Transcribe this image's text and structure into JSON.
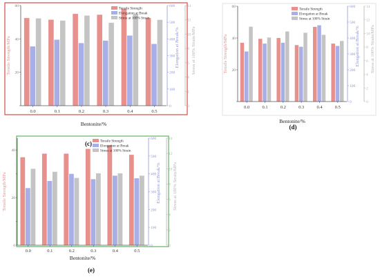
{
  "figure": {
    "panel_labels": [
      "(c)",
      "(d)",
      "(e)"
    ]
  },
  "colors": {
    "tensile": "#e8908c",
    "elongation": "#a8aee6",
    "stress": "#c4c4c4",
    "tensile_axis": "#e8908c",
    "elongation_axis": "#8e96d8",
    "stress_axis": "#b4b4b4",
    "frame_c": "#d94a4a",
    "frame_d": "#e7e7e7",
    "frame_e": "#5fb35f",
    "axis": "#555555"
  },
  "chart_data": [
    {
      "id": "c",
      "label": "(c)",
      "type": "bar",
      "xlabel": "Bentonite/%",
      "categories": [
        "0.0",
        "0.1",
        "0.2",
        "0.3",
        "0.4",
        "0.5"
      ],
      "left_axis": {
        "label": "Tensile Strength/MPa",
        "ylim": [
          0,
          60
        ],
        "ticks": [
          0,
          20,
          40,
          60
        ],
        "tick_labels": [
          "",
          "20",
          "40",
          "60"
        ]
      },
      "right_axis_1": {
        "label": "Elongation at Break/%",
        "ylim": [
          0,
          600
        ],
        "ticks": [
          0,
          100,
          200,
          300,
          400,
          500,
          600
        ]
      },
      "right_axis_2": {
        "label": "Stress at 100% Strain/MPa",
        "ylim": [
          0,
          14
        ],
        "ticks": [
          0,
          2,
          4,
          6,
          8,
          10,
          12,
          14
        ]
      },
      "legend": {
        "placement": "top-right",
        "entries": [
          "Tensile Strength",
          "Elongation at Break",
          "Stress at 100% Strain"
        ]
      },
      "series": [
        {
          "name": "Tensile Strength",
          "axis": "left",
          "values": [
            52.5,
            51.5,
            55,
            54.5,
            58,
            52.5
          ]
        },
        {
          "name": "Elongation at Break",
          "axis": "right1",
          "values": [
            355,
            395,
            375,
            390,
            420,
            370
          ]
        },
        {
          "name": "Stress at 100% Strain",
          "axis": "right2",
          "values": [
            12.2,
            11.9,
            12.6,
            11.6,
            12.8,
            12.0
          ]
        }
      ]
    },
    {
      "id": "d",
      "label": "(d)",
      "type": "bar",
      "xlabel": "Bentonite/%",
      "categories": [
        "0.0",
        "0.1",
        "0.2",
        "0.3",
        "0.4",
        "0.5"
      ],
      "left_axis": {
        "label": "Tensile Strength/MPa",
        "ylim": [
          0,
          60
        ],
        "ticks": [
          0,
          20,
          40,
          60
        ],
        "tick_labels": [
          "",
          "20",
          "40",
          "60"
        ]
      },
      "right_axis_1": {
        "label": "Elongation at Break/%",
        "ylim": [
          0,
          600
        ],
        "ticks": [
          0,
          100,
          200,
          300,
          400,
          500,
          600
        ]
      },
      "right_axis_2": {
        "label": "Stress at 100% Strain/MPa",
        "ylim": [
          0,
          14
        ],
        "ticks": [
          0,
          2,
          4,
          6,
          8,
          10,
          12,
          14
        ]
      },
      "legend": {
        "placement": "top-right",
        "entries": [
          "Tensile Strength",
          "Elongation at Break",
          "Stress at 100% Strain"
        ]
      },
      "series": [
        {
          "name": "Tensile Strength",
          "axis": "left",
          "values": [
            37,
            39.5,
            40,
            35.5,
            47,
            36.5
          ]
        },
        {
          "name": "Elongation at Break",
          "axis": "right1",
          "values": [
            315,
            365,
            370,
            345,
            480,
            350
          ]
        },
        {
          "name": "Stress at 100% Strain",
          "axis": "right2",
          "values": [
            11.0,
            9.4,
            10.3,
            10.1,
            9.8,
            8.9
          ]
        }
      ]
    },
    {
      "id": "e",
      "label": "(e)",
      "type": "bar",
      "xlabel": "Bentonite/%",
      "categories": [
        "0.0",
        "0.1",
        "0.2",
        "0.3",
        "0.4",
        "0.5"
      ],
      "left_axis": {
        "label": "Tensile Strength/MPa",
        "ylim": [
          0,
          45
        ],
        "ticks": [
          0,
          10,
          20,
          30,
          40
        ],
        "tick_labels": [
          "0",
          "",
          "20",
          "",
          "40"
        ]
      },
      "right_axis_1": {
        "label": "Elongation at Break/%",
        "ylim": [
          0,
          600
        ],
        "ticks": [
          0,
          100,
          200,
          300,
          400,
          500,
          600
        ]
      },
      "right_axis_2": {
        "label": "Stress at 100% Strain/MPa",
        "ylim": [
          0,
          14
        ],
        "ticks": [
          0,
          2,
          4,
          6,
          8,
          10,
          12,
          14
        ]
      },
      "legend": {
        "placement": "top-right",
        "entries": [
          "Tensile Strength",
          "Elongation at Break",
          "Stress at 100% Strain"
        ]
      },
      "series": [
        {
          "name": "Tensile Strength",
          "axis": "left",
          "values": [
            37,
            38.5,
            38.5,
            40.5,
            42,
            38
          ]
        },
        {
          "name": "Elongation at Break",
          "axis": "right1",
          "values": [
            320,
            360,
            400,
            370,
            390,
            375
          ]
        },
        {
          "name": "Stress at 100% Strain",
          "axis": "right2",
          "values": [
            10.0,
            9.6,
            8.8,
            9.4,
            9.4,
            9.1
          ]
        }
      ]
    }
  ]
}
